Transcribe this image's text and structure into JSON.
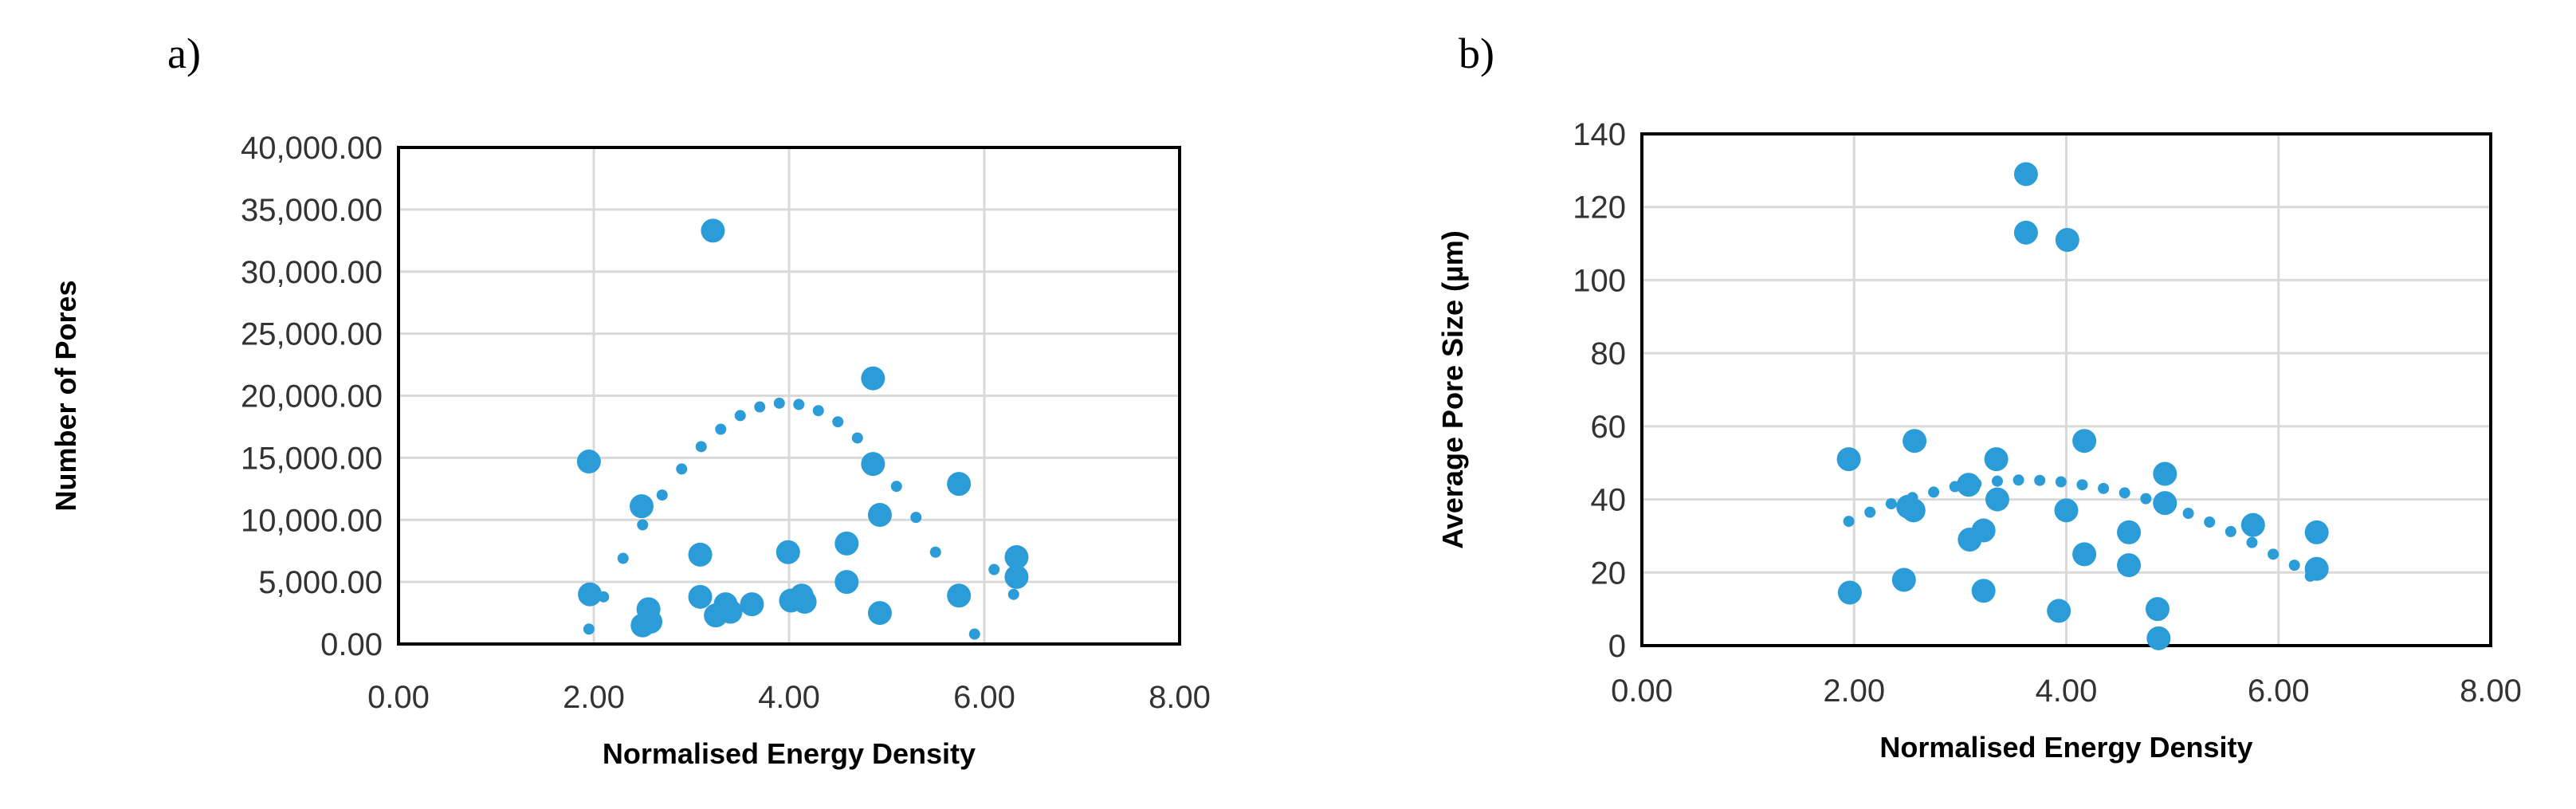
{
  "chart_data": [
    {
      "type": "scatter",
      "panel_label": "a)",
      "xlabel": "Normalised Energy Density",
      "ylabel": "Number of Pores",
      "xlim": [
        0,
        8
      ],
      "ylim": [
        0,
        40000
      ],
      "xticks": [
        0,
        2,
        4,
        6,
        8
      ],
      "yticks": [
        0,
        5000,
        10000,
        15000,
        20000,
        25000,
        30000,
        35000,
        40000
      ],
      "xtick_labels": [
        "0.00",
        "2.00",
        "4.00",
        "6.00",
        "8.00"
      ],
      "ytick_labels": [
        "0.00",
        "5,000.00",
        "10,000.00",
        "15,000.00",
        "20,000.00",
        "25,000.00",
        "30,000.00",
        "35,000.00",
        "40,000.00"
      ],
      "grid": true,
      "color": "#2b9cd8",
      "series": [
        {
          "name": "data",
          "points": [
            [
              1.95,
              14700
            ],
            [
              1.96,
              4000
            ],
            [
              2.49,
              11100
            ],
            [
              2.5,
              1500
            ],
            [
              2.56,
              2800
            ],
            [
              2.58,
              1800
            ],
            [
              3.09,
              7200
            ],
            [
              3.09,
              3800
            ],
            [
              3.22,
              33300
            ],
            [
              3.25,
              2300
            ],
            [
              3.35,
              3200
            ],
            [
              3.4,
              2600
            ],
            [
              3.62,
              3200
            ],
            [
              3.99,
              7400
            ],
            [
              4.02,
              3500
            ],
            [
              4.13,
              3900
            ],
            [
              4.16,
              3400
            ],
            [
              4.59,
              8100
            ],
            [
              4.59,
              5000
            ],
            [
              4.86,
              21400
            ],
            [
              4.86,
              14500
            ],
            [
              4.93,
              10400
            ],
            [
              4.93,
              2500
            ],
            [
              5.74,
              12900
            ],
            [
              5.74,
              3900
            ],
            [
              6.33,
              7000
            ],
            [
              6.33,
              5400
            ]
          ]
        }
      ],
      "trendline": {
        "type": "polynomial",
        "x": [
          1.95,
          2.1,
          2.3,
          2.5,
          2.7,
          2.9,
          3.1,
          3.3,
          3.5,
          3.7,
          3.9,
          4.1,
          4.3,
          4.5,
          4.7,
          4.9,
          5.1,
          5.3,
          5.5,
          5.7,
          5.9,
          6.1,
          6.3
        ],
        "y": [
          1200,
          3800,
          6900,
          9600,
          12000,
          14100,
          15900,
          17300,
          18400,
          19100,
          19400,
          19300,
          18800,
          17900,
          16600,
          14800,
          12700,
          10200,
          7400,
          4200,
          800,
          6000,
          4000
        ]
      }
    },
    {
      "type": "scatter",
      "panel_label": "b)",
      "xlabel": "Normalised Energy Density",
      "ylabel": "Average Pore Size (µm)",
      "xlim": [
        0,
        8
      ],
      "ylim": [
        0,
        140
      ],
      "xticks": [
        0,
        2,
        4,
        6,
        8
      ],
      "yticks": [
        0,
        20,
        40,
        60,
        80,
        100,
        120,
        140
      ],
      "xtick_labels": [
        "0.00",
        "2.00",
        "4.00",
        "6.00",
        "8.00"
      ],
      "ytick_labels": [
        "0",
        "20",
        "40",
        "60",
        "80",
        "100",
        "120",
        "140"
      ],
      "grid": true,
      "color": "#2b9cd8",
      "series": [
        {
          "name": "data",
          "points": [
            [
              1.95,
              51
            ],
            [
              1.96,
              14.5
            ],
            [
              2.47,
              18
            ],
            [
              2.51,
              38
            ],
            [
              2.56,
              37
            ],
            [
              2.57,
              56
            ],
            [
              3.08,
              44
            ],
            [
              3.09,
              29
            ],
            [
              3.22,
              31.5
            ],
            [
              3.22,
              15
            ],
            [
              3.34,
              51
            ],
            [
              3.35,
              40
            ],
            [
              3.62,
              129
            ],
            [
              3.62,
              113
            ],
            [
              3.93,
              9.5
            ],
            [
              4.0,
              37
            ],
            [
              4.01,
              111
            ],
            [
              4.17,
              56
            ],
            [
              4.17,
              25
            ],
            [
              4.59,
              31
            ],
            [
              4.59,
              22
            ],
            [
              4.86,
              10
            ],
            [
              4.87,
              2
            ],
            [
              4.93,
              47
            ],
            [
              4.93,
              39
            ],
            [
              5.76,
              33
            ],
            [
              6.36,
              31
            ],
            [
              6.36,
              21
            ]
          ]
        }
      ],
      "trendline": {
        "type": "polynomial",
        "x": [
          1.95,
          2.15,
          2.35,
          2.55,
          2.75,
          2.95,
          3.15,
          3.35,
          3.55,
          3.75,
          3.95,
          4.15,
          4.35,
          4.55,
          4.75,
          4.95,
          5.15,
          5.35,
          5.55,
          5.75,
          5.95,
          6.15,
          6.3
        ],
        "y": [
          34,
          36.5,
          38.8,
          40.5,
          42,
          43.5,
          44.3,
          45,
          45.3,
          45.2,
          44.8,
          44,
          43,
          41.8,
          40.2,
          38.3,
          36.2,
          33.8,
          31.2,
          28.2,
          25,
          22,
          19
        ]
      }
    }
  ]
}
